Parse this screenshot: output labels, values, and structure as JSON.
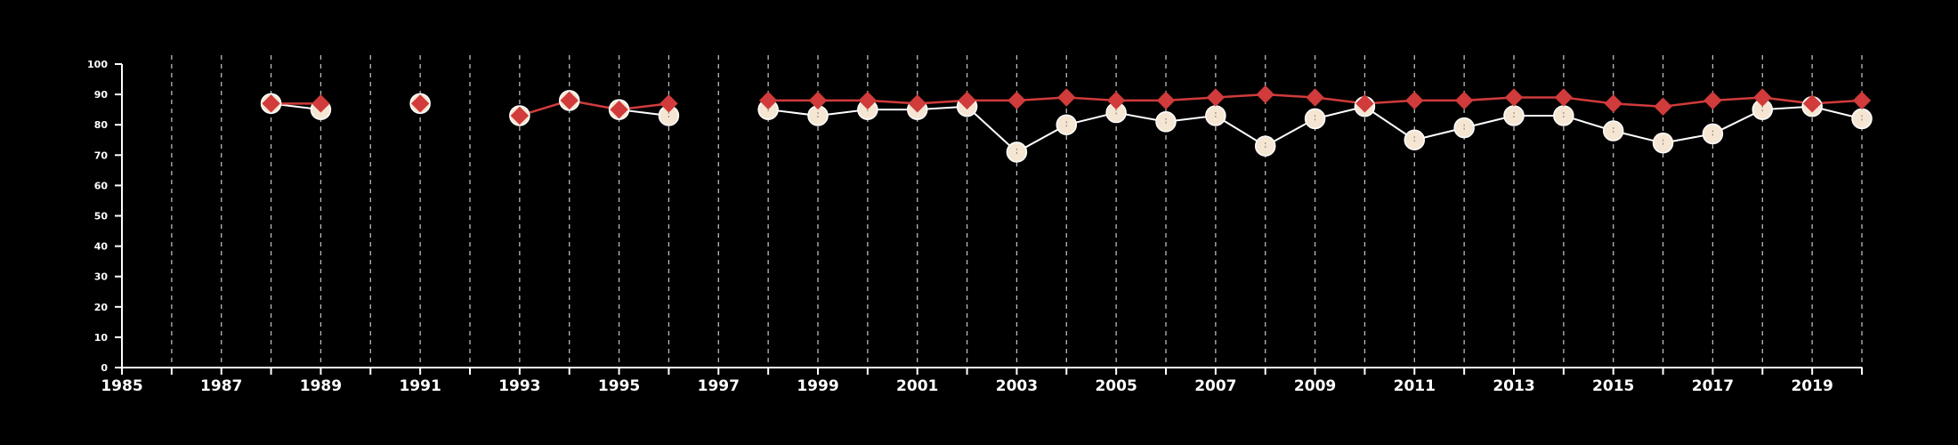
{
  "chart_data": {
    "type": "line",
    "title": "",
    "xlabel": "",
    "ylabel": "",
    "xlim": [
      1985,
      2020
    ],
    "ylim": [
      0,
      100
    ],
    "x_tick_labels": [
      "1985",
      "1987",
      "1989",
      "1991",
      "1993",
      "1995",
      "1997",
      "1999",
      "2001",
      "2003",
      "2005",
      "2007",
      "2009",
      "2011",
      "2013",
      "2015",
      "2017",
      "2019"
    ],
    "y_tick_labels": [
      "0",
      "10",
      "20",
      "30",
      "40",
      "50",
      "60",
      "70",
      "80",
      "90",
      "100"
    ],
    "grid": "vertical dashed lines at every year",
    "colors": {
      "background": "#000000",
      "axis": "#ffffff",
      "grid": "#bbbbbb",
      "series_circle": "#f5e6d3",
      "series_circle_line": "#ffffff",
      "series_diamond": "#d13b3b"
    },
    "series": [
      {
        "marker": "circle",
        "segments": [
          [
            [
              1988,
              87
            ],
            [
              1989,
              85
            ]
          ],
          [
            [
              1991,
              87
            ]
          ],
          [
            [
              1993,
              83
            ],
            [
              1994,
              88
            ],
            [
              1995,
              85
            ],
            [
              1996,
              83
            ]
          ],
          [
            [
              1998,
              85
            ],
            [
              1999,
              83
            ],
            [
              2000,
              85
            ],
            [
              2001,
              85
            ],
            [
              2002,
              86
            ],
            [
              2003,
              71
            ],
            [
              2004,
              80
            ],
            [
              2005,
              84
            ],
            [
              2006,
              81
            ],
            [
              2007,
              83
            ],
            [
              2008,
              73
            ],
            [
              2009,
              82
            ],
            [
              2010,
              86
            ],
            [
              2011,
              75
            ],
            [
              2012,
              79
            ],
            [
              2013,
              83
            ],
            [
              2014,
              83
            ],
            [
              2015,
              78
            ],
            [
              2016,
              74
            ],
            [
              2017,
              77
            ],
            [
              2018,
              85
            ],
            [
              2019,
              86
            ],
            [
              2020,
              82
            ]
          ]
        ]
      },
      {
        "marker": "diamond",
        "segments": [
          [
            [
              1988,
              87
            ],
            [
              1989,
              87
            ]
          ],
          [
            [
              1991,
              87
            ]
          ],
          [
            [
              1993,
              83
            ],
            [
              1994,
              88
            ],
            [
              1995,
              85
            ],
            [
              1996,
              87
            ]
          ],
          [
            [
              1998,
              88
            ],
            [
              1999,
              88
            ],
            [
              2000,
              88
            ],
            [
              2001,
              87
            ],
            [
              2002,
              88
            ],
            [
              2003,
              88
            ],
            [
              2004,
              89
            ],
            [
              2005,
              88
            ],
            [
              2006,
              88
            ],
            [
              2007,
              89
            ],
            [
              2008,
              90
            ],
            [
              2009,
              89
            ],
            [
              2010,
              87
            ],
            [
              2011,
              88
            ],
            [
              2012,
              88
            ],
            [
              2013,
              89
            ],
            [
              2014,
              89
            ],
            [
              2015,
              87
            ],
            [
              2016,
              86
            ],
            [
              2017,
              88
            ],
            [
              2018,
              89
            ],
            [
              2019,
              87
            ],
            [
              2020,
              88
            ]
          ]
        ]
      }
    ]
  }
}
